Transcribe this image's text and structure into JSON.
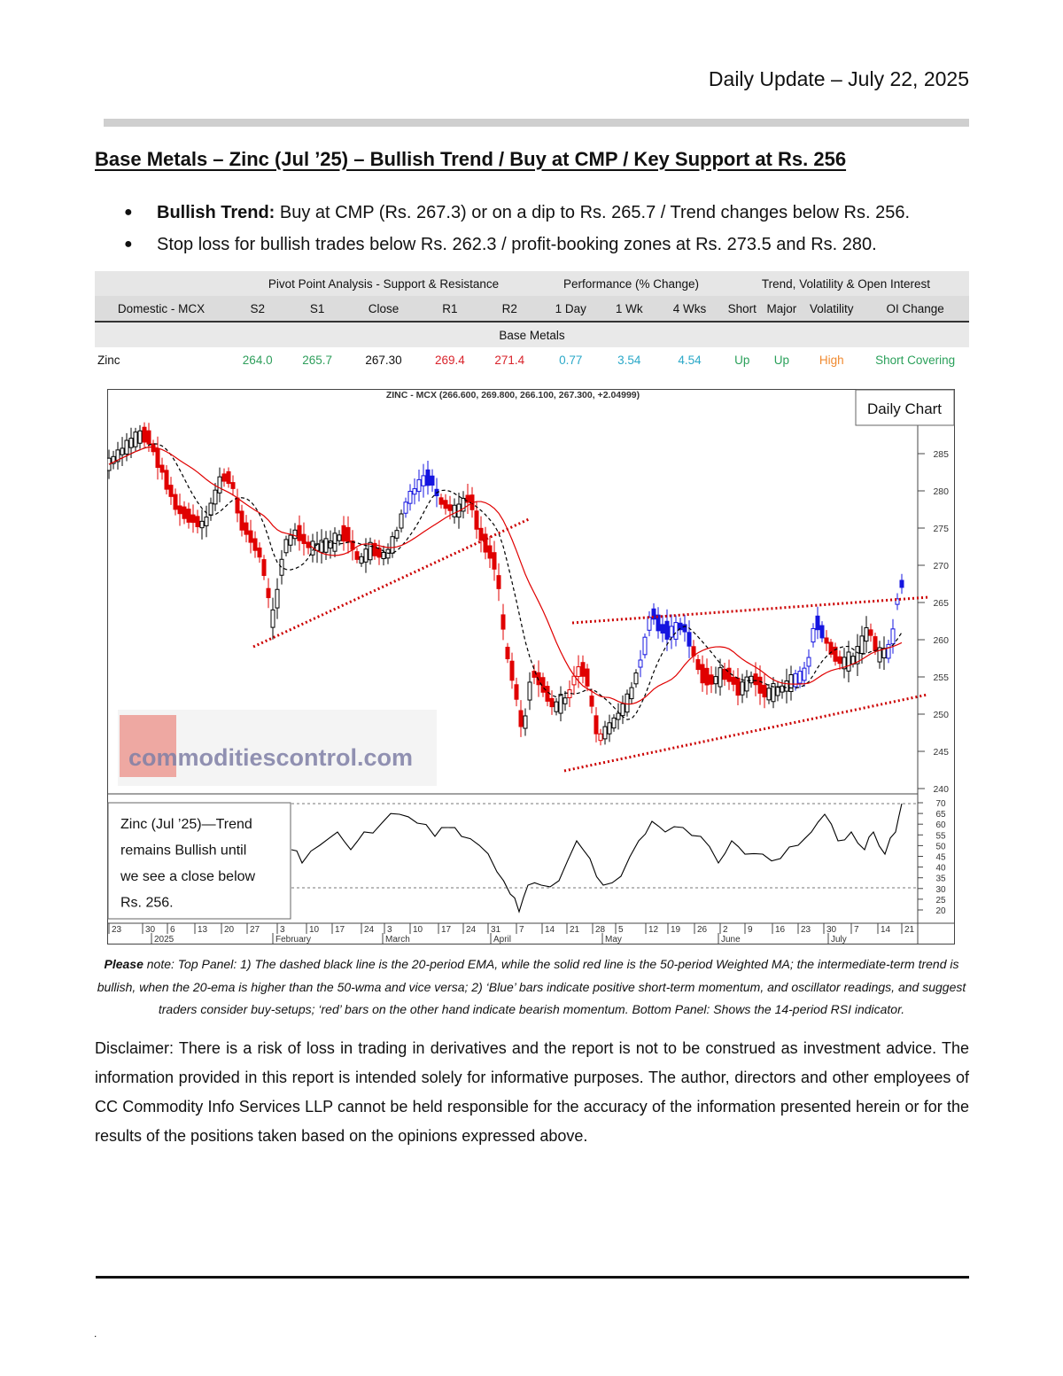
{
  "header": {
    "date_line": "Daily Update – July 22, 2025"
  },
  "title": "Base Metals – Zinc (Jul ’25) – Bullish Trend / Buy at CMP / Key Support at Rs. 256",
  "bullets": [
    {
      "bold": "Bullish Trend:",
      "text": " Buy at CMP (Rs. 267.3) or on a dip to Rs. 265.7 / Trend changes below Rs. 256."
    },
    {
      "bold": "",
      "text": "Stop loss for bullish trades below Rs. 262.3 / profit-booking zones at Rs. 273.5 and Rs. 280."
    }
  ],
  "table": {
    "groups": [
      "Pivot Point Analysis - Support & Resistance",
      "Performance (% Change)",
      "Trend, Volatility & Open Interest"
    ],
    "columns": [
      "Domestic - MCX",
      "S2",
      "S1",
      "Close",
      "R1",
      "R2",
      "1 Day",
      "1 Wk",
      "4 Wks",
      "Short",
      "Major",
      "Volatility",
      "OI Change"
    ],
    "section": "Base Metals",
    "row": [
      "Zinc",
      "264.0",
      "265.7",
      "267.30",
      "269.4",
      "271.4",
      "0.77",
      "3.54",
      "4.54",
      "Up",
      "Up",
      "High",
      "Short Covering"
    ]
  },
  "chart": {
    "header": "ZINC - MCX (266.600, 269.800, 266.100, 267.300, +2.04999)",
    "badge": "Daily Chart",
    "watermark": "commoditiescontrol.com",
    "callout": "Zinc (Jul ’25)—Trend remains Bullish until we see a close below Rs. 256.",
    "price_ticks": [
      "285",
      "280",
      "275",
      "270",
      "265",
      "260",
      "255",
      "250",
      "245",
      "240"
    ],
    "rsi_ticks": [
      "70",
      "65",
      "60",
      "55",
      "50",
      "45",
      "40",
      "35",
      "30",
      "25",
      "20"
    ],
    "date_ticks": [
      "23",
      "30",
      "6",
      "13",
      "20",
      "27",
      "3",
      "10",
      "17",
      "24",
      "3",
      "10",
      "17",
      "24",
      "31",
      "7",
      "14",
      "21",
      "28",
      "5",
      "12",
      "19",
      "26",
      "2",
      "9",
      "16",
      "23",
      "30",
      "7",
      "14",
      "21"
    ],
    "month_labels": [
      "2025",
      "February",
      "March",
      "April",
      "May",
      "June",
      "July"
    ],
    "colors": {
      "bullish": "#1414e0",
      "bearish": "#e00000",
      "neutral": "#000000",
      "ema": "#000000",
      "wma": "#e00000",
      "trendline": "#cc0000"
    }
  },
  "note": {
    "lead": "Please",
    "text": " note: Top Panel: 1) The dashed black line is the 20-period EMA, while the solid red line is the 50-period Weighted MA; the intermediate-term trend is bullish, when the 20-ema is higher than the 50-wma and vice versa; 2) ‘Blue’ bars indicate positive short-term momentum, and oscillator readings, and suggest traders consider buy-setups; ‘red’ bars on the other hand indicate bearish momentum. Bottom Panel: Shows the 14-period RSI indicator."
  },
  "disclaimer": "Disclaimer: There is a risk of loss in trading in derivatives and the report is not to be construed as investment advice. The information provided in this report is intended solely for informative purposes. The author, directors and other employees of CC Commodity Info Services LLP cannot be held responsible for the accuracy of the information presented herein or for the results of the positions taken based on the opinions expressed above.",
  "footer": {
    "mark": "."
  }
}
